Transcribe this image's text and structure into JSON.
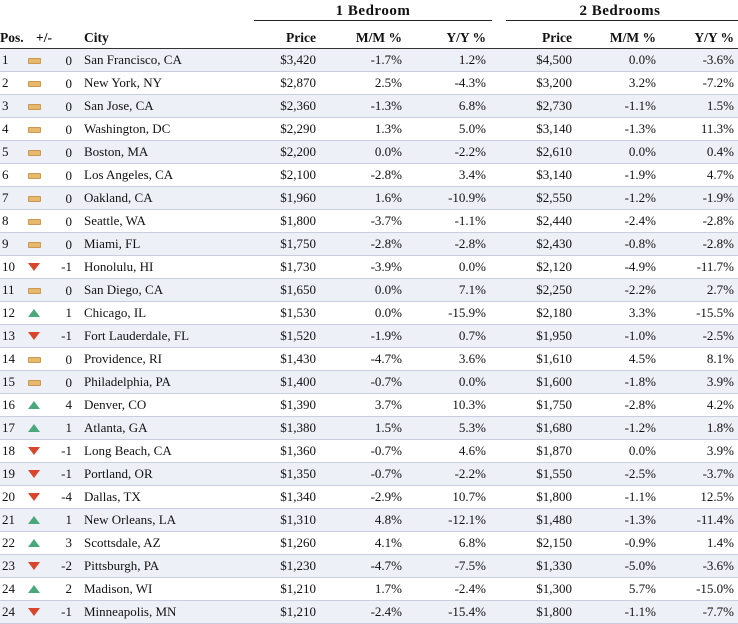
{
  "groups": {
    "one_bedroom": "1 Bedroom",
    "two_bedrooms": "2 Bedrooms"
  },
  "columns": {
    "pos": "Pos.",
    "change": "+/-",
    "city": "City",
    "price1": "Price",
    "mm1": "M/M %",
    "yy1": "Y/Y %",
    "price2": "Price",
    "mm2": "M/M %",
    "yy2": "Y/Y %"
  },
  "indicator_colors": {
    "same": "#e8b96d",
    "down": "#d9452b",
    "up": "#4aa97a"
  },
  "rows": [
    {
      "pos": "1",
      "trend": "same",
      "change": "0",
      "city": "San Francisco, CA",
      "price1": "$3,420",
      "mm1": "-1.7%",
      "yy1": "1.2%",
      "price2": "$4,500",
      "mm2": "0.0%",
      "yy2": "-3.6%"
    },
    {
      "pos": "2",
      "trend": "same",
      "change": "0",
      "city": "New York, NY",
      "price1": "$2,870",
      "mm1": "2.5%",
      "yy1": "-4.3%",
      "price2": "$3,200",
      "mm2": "3.2%",
      "yy2": "-7.2%"
    },
    {
      "pos": "3",
      "trend": "same",
      "change": "0",
      "city": "San Jose, CA",
      "price1": "$2,360",
      "mm1": "-1.3%",
      "yy1": "6.8%",
      "price2": "$2,730",
      "mm2": "-1.1%",
      "yy2": "1.5%"
    },
    {
      "pos": "4",
      "trend": "same",
      "change": "0",
      "city": "Washington, DC",
      "price1": "$2,290",
      "mm1": "1.3%",
      "yy1": "5.0%",
      "price2": "$3,140",
      "mm2": "-1.3%",
      "yy2": "11.3%"
    },
    {
      "pos": "5",
      "trend": "same",
      "change": "0",
      "city": "Boston, MA",
      "price1": "$2,200",
      "mm1": "0.0%",
      "yy1": "-2.2%",
      "price2": "$2,610",
      "mm2": "0.0%",
      "yy2": "0.4%"
    },
    {
      "pos": "6",
      "trend": "same",
      "change": "0",
      "city": "Los Angeles, CA",
      "price1": "$2,100",
      "mm1": "-2.8%",
      "yy1": "3.4%",
      "price2": "$3,140",
      "mm2": "-1.9%",
      "yy2": "4.7%"
    },
    {
      "pos": "7",
      "trend": "same",
      "change": "0",
      "city": "Oakland, CA",
      "price1": "$1,960",
      "mm1": "1.6%",
      "yy1": "-10.9%",
      "price2": "$2,550",
      "mm2": "-1.2%",
      "yy2": "-1.9%"
    },
    {
      "pos": "8",
      "trend": "same",
      "change": "0",
      "city": "Seattle, WA",
      "price1": "$1,800",
      "mm1": "-3.7%",
      "yy1": "-1.1%",
      "price2": "$2,440",
      "mm2": "-2.4%",
      "yy2": "-2.8%"
    },
    {
      "pos": "9",
      "trend": "same",
      "change": "0",
      "city": "Miami, FL",
      "price1": "$1,750",
      "mm1": "-2.8%",
      "yy1": "-2.8%",
      "price2": "$2,430",
      "mm2": "-0.8%",
      "yy2": "-2.8%"
    },
    {
      "pos": "10",
      "trend": "down",
      "change": "-1",
      "city": "Honolulu, HI",
      "price1": "$1,730",
      "mm1": "-3.9%",
      "yy1": "0.0%",
      "price2": "$2,120",
      "mm2": "-4.9%",
      "yy2": "-11.7%"
    },
    {
      "pos": "11",
      "trend": "same",
      "change": "0",
      "city": "San Diego, CA",
      "price1": "$1,650",
      "mm1": "0.0%",
      "yy1": "7.1%",
      "price2": "$2,250",
      "mm2": "-2.2%",
      "yy2": "2.7%"
    },
    {
      "pos": "12",
      "trend": "up",
      "change": "1",
      "city": "Chicago, IL",
      "price1": "$1,530",
      "mm1": "0.0%",
      "yy1": "-15.9%",
      "price2": "$2,180",
      "mm2": "3.3%",
      "yy2": "-15.5%"
    },
    {
      "pos": "13",
      "trend": "down",
      "change": "-1",
      "city": "Fort Lauderdale, FL",
      "price1": "$1,520",
      "mm1": "-1.9%",
      "yy1": "0.7%",
      "price2": "$1,950",
      "mm2": "-1.0%",
      "yy2": "-2.5%"
    },
    {
      "pos": "14",
      "trend": "same",
      "change": "0",
      "city": "Providence, RI",
      "price1": "$1,430",
      "mm1": "-4.7%",
      "yy1": "3.6%",
      "price2": "$1,610",
      "mm2": "4.5%",
      "yy2": "8.1%"
    },
    {
      "pos": "15",
      "trend": "same",
      "change": "0",
      "city": "Philadelphia, PA",
      "price1": "$1,400",
      "mm1": "-0.7%",
      "yy1": "0.0%",
      "price2": "$1,600",
      "mm2": "-1.8%",
      "yy2": "3.9%"
    },
    {
      "pos": "16",
      "trend": "up",
      "change": "4",
      "city": "Denver, CO",
      "price1": "$1,390",
      "mm1": "3.7%",
      "yy1": "10.3%",
      "price2": "$1,750",
      "mm2": "-2.8%",
      "yy2": "4.2%"
    },
    {
      "pos": "17",
      "trend": "up",
      "change": "1",
      "city": "Atlanta, GA",
      "price1": "$1,380",
      "mm1": "1.5%",
      "yy1": "5.3%",
      "price2": "$1,680",
      "mm2": "-1.2%",
      "yy2": "1.8%"
    },
    {
      "pos": "18",
      "trend": "down",
      "change": "-1",
      "city": "Long Beach, CA",
      "price1": "$1,360",
      "mm1": "-0.7%",
      "yy1": "4.6%",
      "price2": "$1,870",
      "mm2": "0.0%",
      "yy2": "3.9%"
    },
    {
      "pos": "19",
      "trend": "down",
      "change": "-1",
      "city": "Portland, OR",
      "price1": "$1,350",
      "mm1": "-0.7%",
      "yy1": "-2.2%",
      "price2": "$1,550",
      "mm2": "-2.5%",
      "yy2": "-3.7%"
    },
    {
      "pos": "20",
      "trend": "down",
      "change": "-4",
      "city": "Dallas, TX",
      "price1": "$1,340",
      "mm1": "-2.9%",
      "yy1": "10.7%",
      "price2": "$1,800",
      "mm2": "-1.1%",
      "yy2": "12.5%"
    },
    {
      "pos": "21",
      "trend": "up",
      "change": "1",
      "city": "New Orleans, LA",
      "price1": "$1,310",
      "mm1": "4.8%",
      "yy1": "-12.1%",
      "price2": "$1,480",
      "mm2": "-1.3%",
      "yy2": "-11.4%"
    },
    {
      "pos": "22",
      "trend": "up",
      "change": "3",
      "city": "Scottsdale, AZ",
      "price1": "$1,260",
      "mm1": "4.1%",
      "yy1": "6.8%",
      "price2": "$2,150",
      "mm2": "-0.9%",
      "yy2": "1.4%"
    },
    {
      "pos": "23",
      "trend": "down",
      "change": "-2",
      "city": "Pittsburgh, PA",
      "price1": "$1,230",
      "mm1": "-4.7%",
      "yy1": "-7.5%",
      "price2": "$1,330",
      "mm2": "-5.0%",
      "yy2": "-3.6%"
    },
    {
      "pos": "24",
      "trend": "up",
      "change": "2",
      "city": "Madison, WI",
      "price1": "$1,210",
      "mm1": "1.7%",
      "yy1": "-2.4%",
      "price2": "$1,300",
      "mm2": "5.7%",
      "yy2": "-15.0%"
    },
    {
      "pos": "24",
      "trend": "down",
      "change": "-1",
      "city": "Minneapolis, MN",
      "price1": "$1,210",
      "mm1": "-2.4%",
      "yy1": "-15.4%",
      "price2": "$1,800",
      "mm2": "-1.1%",
      "yy2": "-7.7%"
    }
  ]
}
